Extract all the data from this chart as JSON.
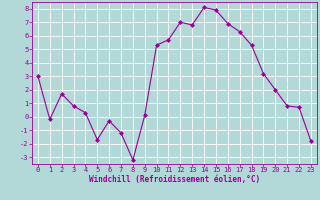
{
  "x": [
    0,
    1,
    2,
    3,
    4,
    5,
    6,
    7,
    8,
    9,
    10,
    11,
    12,
    13,
    14,
    15,
    16,
    17,
    18,
    19,
    20,
    21,
    22,
    23
  ],
  "y": [
    3,
    -0.2,
    1.7,
    0.8,
    0.3,
    -1.7,
    -0.3,
    -1.2,
    -3.2,
    0.1,
    5.3,
    5.7,
    7.0,
    6.8,
    8.1,
    7.9,
    6.9,
    6.3,
    5.3,
    3.2,
    2.0,
    0.8,
    0.7,
    -1.8
  ],
  "line_color": "#990099",
  "marker": "D",
  "marker_size": 2,
  "bg_color": "#b2d8d8",
  "grid_color": "#ffffff",
  "xlabel": "Windchill (Refroidissement éolien,°C)",
  "xlim": [
    -0.5,
    23.5
  ],
  "ylim": [
    -3.5,
    8.5
  ],
  "yticks": [
    -3,
    -2,
    -1,
    0,
    1,
    2,
    3,
    4,
    5,
    6,
    7,
    8
  ],
  "xticks": [
    0,
    1,
    2,
    3,
    4,
    5,
    6,
    7,
    8,
    9,
    10,
    11,
    12,
    13,
    14,
    15,
    16,
    17,
    18,
    19,
    20,
    21,
    22,
    23
  ],
  "tick_color": "#990099",
  "label_color": "#990099",
  "spine_color": "#990099",
  "tick_fontsize": 5,
  "xlabel_fontsize": 5.5,
  "linewidth": 0.8
}
